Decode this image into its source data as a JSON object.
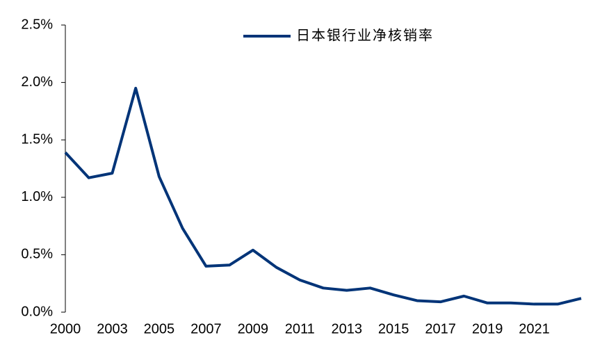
{
  "chart_data": {
    "type": "line",
    "categories": [
      "2000",
      null,
      "2003",
      null,
      "2005",
      null,
      "2007",
      null,
      "2009",
      null,
      "2011",
      null,
      "2013",
      null,
      "2015",
      null,
      "2017",
      null,
      "2019",
      null,
      "2021",
      null,
      null
    ],
    "series": [
      {
        "name": "日本银行业净核销率",
        "color": "#003478",
        "values": [
          1.39,
          1.17,
          1.21,
          1.95,
          1.18,
          0.73,
          0.4,
          0.41,
          0.54,
          0.39,
          0.28,
          0.21,
          0.19,
          0.21,
          0.15,
          0.1,
          0.09,
          0.14,
          0.08,
          0.08,
          0.07,
          0.07,
          0.12
        ]
      }
    ],
    "ylim": [
      0,
      2.5
    ],
    "yticks": [
      {
        "value": 0,
        "label": "0.0%"
      },
      {
        "value": 0.5,
        "label": "0.5%"
      },
      {
        "value": 1.0,
        "label": "1.0%"
      },
      {
        "value": 1.5,
        "label": "1.5%"
      },
      {
        "value": 2.0,
        "label": "2.0%"
      },
      {
        "value": 2.5,
        "label": "2.5%"
      }
    ],
    "legend": "top"
  }
}
